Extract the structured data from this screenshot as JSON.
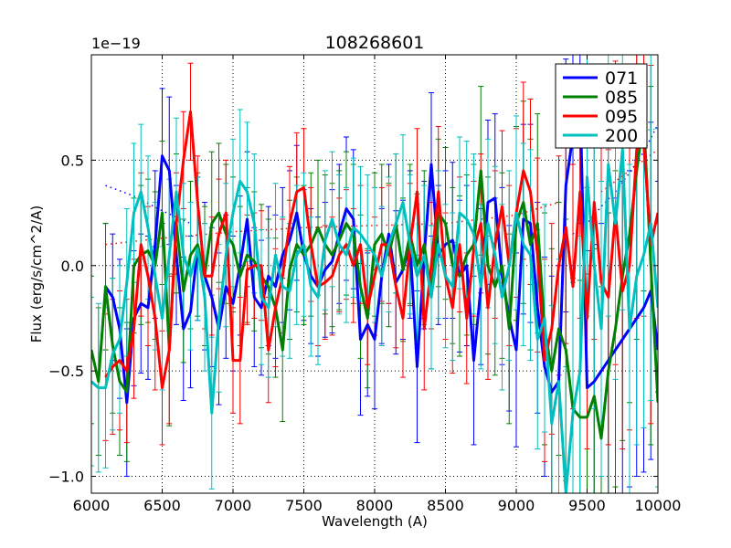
{
  "chart_data": {
    "type": "line",
    "title": "108268601",
    "xlabel": "Wavelength (A)",
    "ylabel": "Flux (erg/s/cm^2/A)",
    "offset_label": "1e−19",
    "xlim": [
      6000,
      10000
    ],
    "ylim": [
      -1.08,
      1.0
    ],
    "x_ticks": [
      6000,
      6500,
      7000,
      7500,
      8000,
      8500,
      9000,
      9500,
      10000
    ],
    "x_tick_labels": [
      "6000",
      "6500",
      "7000",
      "7500",
      "8000",
      "8500",
      "9000",
      "9500",
      "10000"
    ],
    "y_ticks": [
      -1.0,
      -0.5,
      0.0,
      0.5
    ],
    "y_tick_labels": [
      "−1.0",
      "−0.5",
      "0.0",
      "0.5"
    ],
    "grid": true,
    "legend_position": "top-right",
    "series": [
      {
        "name": "071",
        "color": "#0000ff",
        "x": [
          6100,
          6150,
          6200,
          6250,
          6300,
          6350,
          6400,
          6450,
          6500,
          6550,
          6600,
          6650,
          6700,
          6750,
          6800,
          6850,
          6900,
          6950,
          7000,
          7050,
          7100,
          7150,
          7200,
          7250,
          7300,
          7350,
          7400,
          7450,
          7500,
          7550,
          7600,
          7650,
          7700,
          7750,
          7800,
          7850,
          7900,
          7950,
          8000,
          8050,
          8100,
          8150,
          8200,
          8250,
          8300,
          8350,
          8400,
          8450,
          8500,
          8550,
          8600,
          8650,
          8700,
          8750,
          8800,
          8850,
          8900,
          8950,
          9000,
          9050,
          9100,
          9150,
          9200,
          9250,
          9300,
          9350,
          9400,
          9450,
          9500,
          9550,
          9600,
          9650,
          9700,
          9750,
          9800,
          9850,
          9900,
          9950,
          10000
        ],
        "y": [
          -0.1,
          -0.15,
          -0.3,
          -0.65,
          -0.25,
          -0.18,
          -0.2,
          0.1,
          0.52,
          0.45,
          0.05,
          -0.3,
          -0.22,
          0.08,
          -0.05,
          -0.15,
          -0.3,
          -0.1,
          -0.18,
          0.0,
          0.22,
          -0.15,
          -0.2,
          -0.05,
          -0.1,
          0.05,
          0.12,
          0.25,
          0.05,
          -0.05,
          -0.1,
          -0.02,
          0.02,
          0.15,
          0.27,
          0.22,
          -0.35,
          -0.28,
          -0.35,
          -0.05,
          0.15,
          -0.08,
          -0.02,
          0.1,
          -0.48,
          0.05,
          0.48,
          0.05,
          0.1,
          0.12,
          -0.05,
          0.0,
          -0.45,
          -0.1,
          0.3,
          0.32,
          -0.05,
          -0.25,
          -0.4,
          0.22,
          0.2,
          -0.2,
          -0.48,
          -0.6,
          -0.55,
          0.38,
          0.62,
          0.8,
          -0.58,
          -0.55,
          -0.5,
          -0.45,
          -0.4,
          -0.35,
          -0.3,
          -0.25,
          -0.2,
          -0.12,
          -0.4
        ],
        "err": [
          0.3,
          0.3,
          0.33,
          0.35,
          0.32,
          0.33,
          0.34,
          0.35,
          0.32,
          0.35,
          0.33,
          0.34,
          0.36,
          0.34,
          0.35,
          0.33,
          0.36,
          0.34,
          0.32,
          0.33,
          0.32,
          0.33,
          0.32,
          0.33,
          0.34,
          0.32,
          0.33,
          0.32,
          0.31,
          0.32,
          0.33,
          0.32,
          0.34,
          0.33,
          0.34,
          0.33,
          0.36,
          0.34,
          0.33,
          0.32,
          0.33,
          0.34,
          0.33,
          0.35,
          0.36,
          0.35,
          0.34,
          0.33,
          0.35,
          0.37,
          0.36,
          0.38,
          0.4,
          0.37,
          0.39,
          0.4,
          0.42,
          0.44,
          0.46,
          0.45,
          0.47,
          0.5,
          0.52,
          0.55,
          0.55,
          0.6,
          0.62,
          0.6,
          0.65,
          0.65,
          0.7,
          0.7,
          0.72,
          0.75,
          0.75,
          0.75,
          0.78,
          0.8,
          0.8
        ]
      },
      {
        "name": "085",
        "color": "#008000",
        "x": [
          6000,
          6050,
          6100,
          6150,
          6200,
          6250,
          6300,
          6350,
          6400,
          6450,
          6500,
          6550,
          6600,
          6650,
          6700,
          6750,
          6800,
          6850,
          6900,
          6950,
          7000,
          7050,
          7100,
          7150,
          7200,
          7250,
          7300,
          7350,
          7400,
          7450,
          7500,
          7550,
          7600,
          7650,
          7700,
          7750,
          7800,
          7850,
          7900,
          7950,
          8000,
          8050,
          8100,
          8150,
          8200,
          8250,
          8300,
          8350,
          8400,
          8450,
          8500,
          8550,
          8600,
          8650,
          8700,
          8750,
          8800,
          8850,
          8900,
          8950,
          9000,
          9050,
          9100,
          9150,
          9200,
          9250,
          9300,
          9350,
          9400,
          9450,
          9500,
          9550,
          9600,
          9650,
          9700,
          9750,
          9800,
          9850,
          9900,
          9950,
          10000
        ],
        "y": [
          -0.4,
          -0.55,
          -0.1,
          -0.38,
          -0.55,
          -0.6,
          0.0,
          0.05,
          0.07,
          0.0,
          0.25,
          -0.4,
          0.2,
          -0.12,
          0.05,
          0.1,
          -0.05,
          0.2,
          0.25,
          0.15,
          0.1,
          -0.05,
          0.05,
          0.02,
          -0.05,
          -0.1,
          -0.2,
          -0.4,
          -0.02,
          0.1,
          0.05,
          0.1,
          0.18,
          0.1,
          0.05,
          0.12,
          0.2,
          0.15,
          -0.1,
          -0.25,
          0.1,
          0.15,
          0.05,
          0.2,
          -0.02,
          0.15,
          0.0,
          0.1,
          -0.15,
          0.25,
          0.2,
          0.0,
          -0.05,
          0.05,
          0.1,
          0.45,
          0.0,
          -0.1,
          0.0,
          -0.3,
          0.2,
          0.3,
          0.1,
          0.2,
          -0.3,
          -0.5,
          -0.3,
          -0.4,
          -0.68,
          -0.72,
          -0.72,
          -0.62,
          -0.82,
          -0.5,
          -0.3,
          -0.05,
          0.15,
          0.45,
          0.7,
          0.0,
          -0.65
        ],
        "err": [
          0.35,
          0.35,
          0.3,
          0.32,
          0.35,
          0.33,
          0.32,
          0.33,
          0.34,
          0.35,
          0.34,
          0.36,
          0.33,
          0.34,
          0.35,
          0.34,
          0.33,
          0.34,
          0.33,
          0.33,
          0.32,
          0.33,
          0.32,
          0.33,
          0.34,
          0.32,
          0.33,
          0.34,
          0.33,
          0.32,
          0.33,
          0.34,
          0.32,
          0.33,
          0.34,
          0.33,
          0.34,
          0.33,
          0.34,
          0.33,
          0.34,
          0.33,
          0.34,
          0.33,
          0.34,
          0.33,
          0.34,
          0.35,
          0.34,
          0.35,
          0.36,
          0.37,
          0.38,
          0.38,
          0.38,
          0.4,
          0.42,
          0.42,
          0.44,
          0.45,
          0.46,
          0.48,
          0.5,
          0.52,
          0.55,
          0.58,
          0.6,
          0.62,
          0.62,
          0.65,
          0.68,
          0.7,
          0.72,
          0.75,
          0.75,
          0.78,
          0.8,
          0.8,
          0.82,
          0.85,
          0.85
        ]
      },
      {
        "name": "095",
        "color": "#ff0000",
        "x": [
          6100,
          6150,
          6200,
          6250,
          6300,
          6350,
          6400,
          6450,
          6500,
          6550,
          6600,
          6650,
          6700,
          6750,
          6800,
          6850,
          6900,
          6950,
          7000,
          7050,
          7100,
          7150,
          7200,
          7250,
          7300,
          7350,
          7400,
          7450,
          7500,
          7550,
          7600,
          7650,
          7700,
          7750,
          7800,
          7850,
          7900,
          7950,
          8000,
          8050,
          8100,
          8150,
          8200,
          8250,
          8300,
          8350,
          8400,
          8450,
          8500,
          8550,
          8600,
          8650,
          8700,
          8750,
          8800,
          8850,
          8900,
          8950,
          9000,
          9050,
          9100,
          9150,
          9200,
          9250,
          9300,
          9350,
          9400,
          9450,
          9500,
          9550,
          9600,
          9650,
          9700,
          9750,
          9800,
          9850,
          9900,
          9950,
          10000
        ],
        "y": [
          -0.53,
          -0.48,
          -0.45,
          -0.5,
          -0.3,
          0.1,
          -0.05,
          -0.25,
          -0.58,
          -0.4,
          0.2,
          0.5,
          0.73,
          0.3,
          -0.05,
          -0.05,
          0.15,
          0.25,
          -0.45,
          -0.45,
          -0.02,
          0.0,
          0.0,
          -0.4,
          -0.2,
          -0.05,
          0.2,
          0.35,
          0.37,
          0.1,
          -0.1,
          -0.08,
          -0.05,
          0.05,
          0.1,
          0.0,
          0.1,
          -0.2,
          -0.05,
          0.1,
          0.1,
          -0.1,
          -0.25,
          0.1,
          0.35,
          -0.3,
          0.0,
          0.35,
          -0.05,
          -0.2,
          0.1,
          -0.25,
          0.08,
          0.2,
          -0.2,
          0.1,
          0.28,
          0.0,
          0.25,
          0.45,
          0.35,
          0.05,
          -0.45,
          -0.3,
          0.0,
          0.18,
          -0.1,
          0.35,
          -0.25,
          0.3,
          -0.08,
          -0.15,
          0.25,
          -0.12,
          0.0,
          0.55,
          0.58,
          0.1,
          0.25
        ],
        "err": [
          0.3,
          0.32,
          0.33,
          0.34,
          0.33,
          0.34,
          0.33,
          0.34,
          0.27,
          0.35,
          0.24,
          0.23,
          0.23,
          0.22,
          0.25,
          0.28,
          0.26,
          0.25,
          0.25,
          0.3,
          0.26,
          0.25,
          0.26,
          0.25,
          0.28,
          0.27,
          0.27,
          0.28,
          0.28,
          0.27,
          0.28,
          0.27,
          0.28,
          0.27,
          0.26,
          0.27,
          0.28,
          0.27,
          0.28,
          0.27,
          0.28,
          0.29,
          0.28,
          0.29,
          0.3,
          0.29,
          0.3,
          0.31,
          0.3,
          0.31,
          0.32,
          0.31,
          0.32,
          0.33,
          0.34,
          0.35,
          0.36,
          0.38,
          0.4,
          0.42,
          0.44,
          0.46,
          0.48,
          0.5,
          0.52,
          0.55,
          0.58,
          0.6,
          0.62,
          0.65,
          0.68,
          0.7,
          0.72,
          0.75,
          0.78,
          0.8,
          0.82,
          0.85,
          0.85
        ]
      },
      {
        "name": "200",
        "color": "#00bfbf",
        "x": [
          6000,
          6050,
          6100,
          6150,
          6200,
          6250,
          6300,
          6350,
          6400,
          6450,
          6500,
          6550,
          6600,
          6650,
          6700,
          6750,
          6800,
          6850,
          6900,
          6950,
          7000,
          7050,
          7100,
          7150,
          7200,
          7250,
          7300,
          7350,
          7400,
          7450,
          7500,
          7550,
          7600,
          7650,
          7700,
          7750,
          7800,
          7850,
          7900,
          7950,
          8000,
          8050,
          8100,
          8150,
          8200,
          8250,
          8300,
          8350,
          8400,
          8450,
          8500,
          8550,
          8600,
          8650,
          8700,
          8750,
          8800,
          8850,
          8900,
          8950,
          9000,
          9050,
          9100,
          9150,
          9200,
          9250,
          9300,
          9350,
          9400,
          9450,
          9500,
          9550,
          9600,
          9650,
          9700,
          9750,
          9800,
          9850,
          9900,
          9950,
          10000
        ],
        "y": [
          -0.55,
          -0.58,
          -0.58,
          -0.42,
          -0.35,
          -0.08,
          0.25,
          0.35,
          0.18,
          -0.05,
          -0.25,
          0.05,
          0.35,
          0.05,
          -0.05,
          0.08,
          -0.15,
          -0.7,
          -0.25,
          0.05,
          0.25,
          0.4,
          0.35,
          0.2,
          -0.15,
          -0.2,
          0.05,
          -0.1,
          -0.12,
          0.05,
          0.1,
          -0.1,
          -0.15,
          0.12,
          0.22,
          0.1,
          0.05,
          0.18,
          0.15,
          0.1,
          0.05,
          -0.05,
          0.1,
          0.2,
          0.3,
          0.1,
          -0.05,
          0.05,
          -0.15,
          0.1,
          -0.05,
          -0.1,
          0.25,
          0.22,
          0.15,
          -0.1,
          0.2,
          0.05,
          -0.15,
          0.0,
          0.25,
          0.1,
          0.05,
          -0.35,
          -0.25,
          -0.75,
          -0.55,
          -1.08,
          -0.7,
          -0.5,
          0.42,
          0.0,
          -0.3,
          0.48,
          0.2,
          0.55,
          -0.3,
          -0.05,
          0.05,
          0.2,
          -0.2
        ],
        "err": [
          0.4,
          0.4,
          0.38,
          0.36,
          0.35,
          0.35,
          0.33,
          0.32,
          0.34,
          0.35,
          0.34,
          0.36,
          0.35,
          0.34,
          0.35,
          0.34,
          0.35,
          0.36,
          0.35,
          0.34,
          0.35,
          0.34,
          0.33,
          0.33,
          0.32,
          0.33,
          0.34,
          0.33,
          0.32,
          0.33,
          0.34,
          0.33,
          0.32,
          0.33,
          0.32,
          0.33,
          0.32,
          0.33,
          0.32,
          0.33,
          0.32,
          0.33,
          0.32,
          0.33,
          0.32,
          0.33,
          0.34,
          0.33,
          0.34,
          0.35,
          0.34,
          0.35,
          0.36,
          0.37,
          0.38,
          0.39,
          0.4,
          0.42,
          0.44,
          0.45,
          0.46,
          0.48,
          0.5,
          0.52,
          0.54,
          0.56,
          0.58,
          0.6,
          0.62,
          0.64,
          0.66,
          0.68,
          0.7,
          0.72,
          0.74,
          0.76,
          0.78,
          0.8,
          0.82,
          0.84,
          0.85
        ]
      }
    ],
    "dotted_curves": [
      {
        "color": "#0000ff",
        "x": [
          6100,
          6300,
          6500,
          6700
        ],
        "y": [
          0.38,
          0.33,
          0.26,
          0.2
        ]
      },
      {
        "color": "#0000ff",
        "x": [
          9400,
          9500,
          9600,
          9700,
          9800,
          9900,
          10000
        ],
        "y": [
          0.15,
          0.2,
          0.28,
          0.35,
          0.44,
          0.54,
          0.67
        ]
      },
      {
        "color": "#ff0000",
        "x": [
          6100,
          6500,
          7000,
          7500,
          8000,
          8500,
          9000,
          9300
        ],
        "y": [
          0.1,
          0.13,
          0.16,
          0.18,
          0.19,
          0.2,
          0.24,
          0.3
        ]
      },
      {
        "color": "#ff0000",
        "x": [
          9600,
          9700,
          9800,
          9900,
          10000
        ],
        "y": [
          0.35,
          0.4,
          0.45,
          0.5,
          0.55
        ]
      },
      {
        "color": "#00bfbf",
        "x": [
          9300,
          9500,
          9700,
          10000
        ],
        "y": [
          0.58,
          0.6,
          0.62,
          0.65
        ]
      }
    ]
  }
}
